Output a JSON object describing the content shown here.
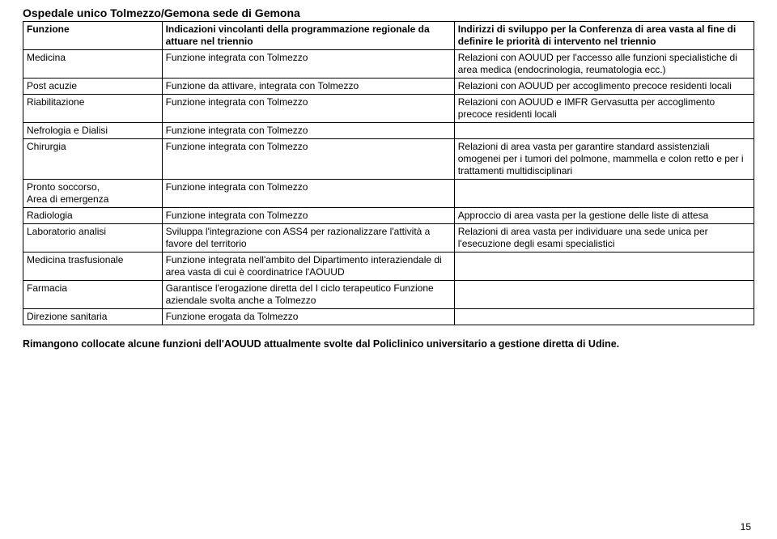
{
  "title": "Ospedale unico  Tolmezzo/Gemona sede di Gemona",
  "columns": [
    "Funzione",
    "Indicazioni vincolanti della programmazione regionale da attuare nel triennio",
    "Indirizzi di sviluppo per la Conferenza di area vasta al fine di definire le priorità di intervento nel triennio"
  ],
  "rows": [
    [
      "Medicina",
      "Funzione integrata con  Tolmezzo",
      "Relazioni con AOUUD per l'accesso alle funzioni specialistiche di area medica (endocrinologia, reumatologia ecc.)"
    ],
    [
      "Post acuzie",
      "Funzione da attivare, integrata con  Tolmezzo",
      "Relazioni con AOUUD per accoglimento precoce residenti locali"
    ],
    [
      "Riabilitazione",
      "Funzione integrata con  Tolmezzo",
      "Relazioni con AOUUD e IMFR Gervasutta per accoglimento precoce residenti locali"
    ],
    [
      "Nefrologia e Dialisi",
      "Funzione integrata con  Tolmezzo",
      ""
    ],
    [
      "Chirurgia",
      "Funzione integrata con  Tolmezzo",
      "Relazioni di area vasta per garantire standard assistenziali omogenei per i tumori del polmone, mammella e colon retto e per i trattamenti multidisciplinari"
    ],
    [
      "Pronto soccorso,\nArea di emergenza",
      "Funzione integrata con  Tolmezzo",
      ""
    ],
    [
      "Radiologia",
      "Funzione integrata con  Tolmezzo",
      "Approccio di area vasta per la gestione delle liste di attesa"
    ],
    [
      "Laboratorio analisi",
      "Sviluppa l'integrazione con ASS4 per razionalizzare l'attività a favore del territorio",
      "Relazioni di area vasta per individuare una sede unica per l'esecuzione degli esami specialistici"
    ],
    [
      "Medicina trasfusionale",
      "Funzione integrata nell'ambito del Dipartimento interaziendale di area vasta di cui è coordinatrice l'AOUUD",
      ""
    ],
    [
      "Farmacia",
      "Garantisce l'erogazione diretta del I ciclo terapeutico Funzione aziendale  svolta anche a Tolmezzo",
      ""
    ],
    [
      "Direzione sanitaria",
      "Funzione erogata da Tolmezzo",
      ""
    ]
  ],
  "footer": "Rimangono collocate alcune funzioni dell'AOUUD attualmente svolte dal Policlinico universitario a gestione diretta di Udine.",
  "page_number": "15",
  "style": {
    "font_family": "Arial",
    "title_fontsize": 14,
    "body_fontsize": 12,
    "border_color": "#000000",
    "background_color": "#ffffff",
    "text_color": "#000000",
    "col_widths_pct": [
      19,
      40,
      41
    ]
  }
}
